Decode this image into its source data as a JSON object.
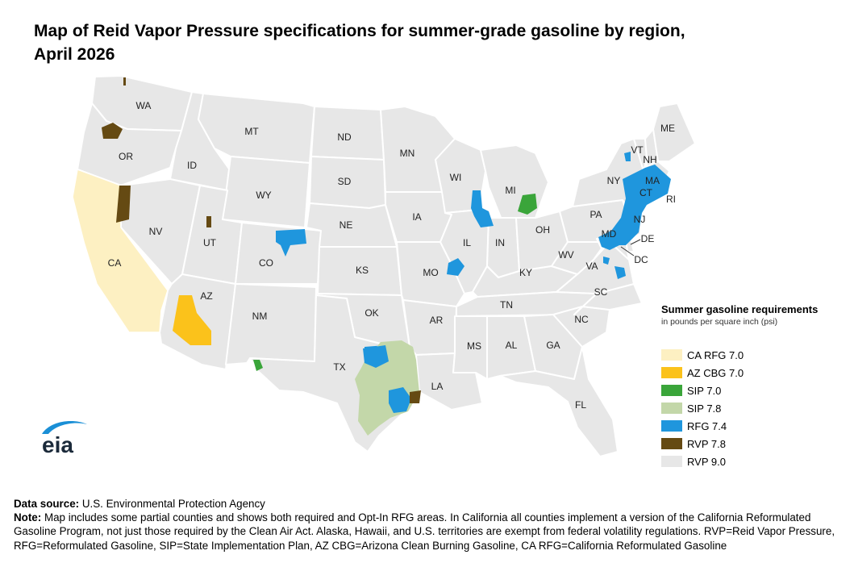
{
  "title_line1": "Map of Reid Vapor Pressure specifications for summer-grade gasoline by region,",
  "title_line2": "April 2026",
  "legend": {
    "title": "Summer gasoline requirements",
    "subtitle": "in pounds per square inch (psi)",
    "items": [
      {
        "label": "CA RFG 7.0",
        "color": "#fdf0c2"
      },
      {
        "label": "AZ CBG 7.0",
        "color": "#fbc21b"
      },
      {
        "label": "SIP 7.0",
        "color": "#3aa53a"
      },
      {
        "label": "SIP 7.8",
        "color": "#c3d7a9"
      },
      {
        "label": "RFG 7.4",
        "color": "#1f96dd"
      },
      {
        "label": "RVP 7.8",
        "color": "#654a13"
      },
      {
        "label": "RVP 9.0",
        "color": "#e7e7e7"
      }
    ]
  },
  "states": [
    "WA",
    "OR",
    "CA",
    "ID",
    "NV",
    "MT",
    "WY",
    "UT",
    "AZ",
    "CO",
    "NM",
    "ND",
    "SD",
    "NE",
    "KS",
    "OK",
    "TX",
    "MN",
    "IA",
    "MO",
    "AR",
    "LA",
    "WI",
    "IL",
    "MI",
    "IN",
    "OH",
    "KY",
    "TN",
    "MS",
    "AL",
    "GA",
    "FL",
    "SC",
    "NC",
    "VA",
    "WV",
    "PA",
    "NY",
    "VT",
    "NH",
    "ME",
    "MA",
    "CT",
    "RI",
    "NJ",
    "DE",
    "MD",
    "DC"
  ],
  "logo_text": "eia",
  "notes": {
    "source_label": "Data source:",
    "source_text": "U.S. Environmental Protection Agency",
    "note_label": "Note:",
    "note_text": "Map includes some partial counties and shows both required and Opt-In RFG areas. In California all counties implement a version of the California Reformulated Gasoline Program, not just those required by the Clean Air Act. Alaska, Hawaii, and U.S. territories are exempt from federal volatility regulations. RVP=Reid Vapor Pressure, RFG=Reformulated Gasoline, SIP=State Implementation Plan, AZ CBG=Arizona Clean Burning Gasoline, CA RFG=California Reformulated Gasoline"
  }
}
